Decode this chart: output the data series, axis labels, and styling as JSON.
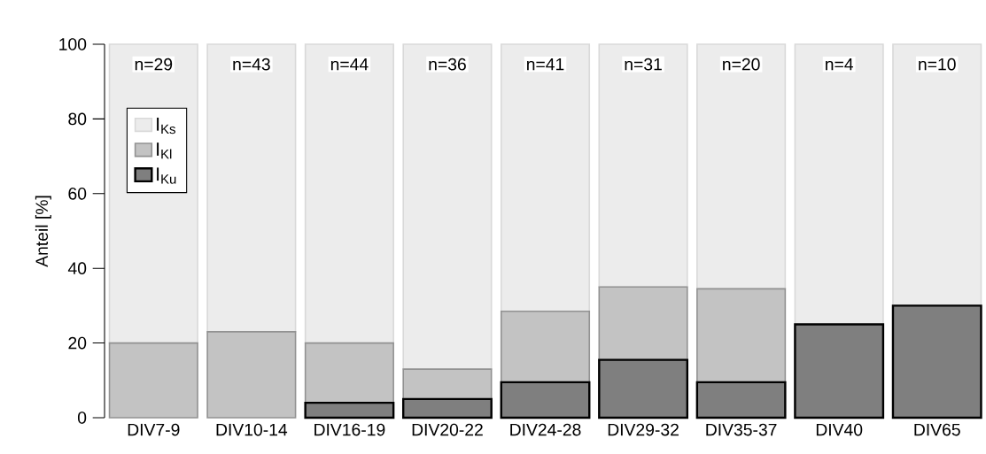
{
  "chart_data": {
    "type": "bar",
    "stacked": true,
    "ylabel": "Anteil [%]",
    "categories": [
      "DIV7-9",
      "DIV10-14",
      "DIV16-19",
      "DIV20-22",
      "DIV24-28",
      "DIV29-32",
      "DIV35-37",
      "DIV40",
      "DIV65"
    ],
    "series": [
      {
        "name": "I$_{Ku}$",
        "color": "#7f7f7f",
        "values": [
          0,
          0,
          4,
          5,
          9.5,
          15.5,
          9.5,
          25,
          30
        ]
      },
      {
        "name": "I$_{Kl}$",
        "color": "#c3c3c3",
        "values": [
          20,
          23,
          16,
          8,
          19,
          19.5,
          25,
          0,
          0
        ]
      },
      {
        "name": "I$_{Ks}$",
        "color": "#ececec",
        "values": [
          80,
          77,
          80,
          87,
          71.5,
          65,
          65.5,
          75,
          70
        ]
      }
    ],
    "ylim": [
      0,
      100
    ],
    "yticks": [
      0,
      20,
      40,
      60,
      80,
      100
    ],
    "grid": false,
    "legend": "top left",
    "annotations": [
      "n=29",
      "n=43",
      "n=44",
      "n=36",
      "n=41",
      "n=31",
      "n=20",
      "n=4",
      "n=10"
    ]
  }
}
